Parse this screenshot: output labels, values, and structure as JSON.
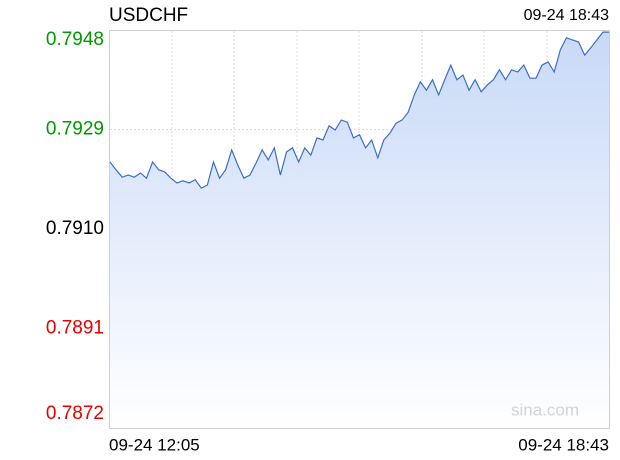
{
  "chart_data": {
    "type": "area-line",
    "title": "USDCHF",
    "timestamp": "09-24 18:43",
    "watermark": "sina.com",
    "categories": [
      "09-24 12:05",
      null,
      null,
      null,
      null,
      null,
      null,
      null,
      null,
      null,
      null,
      null,
      null,
      null,
      null,
      null,
      null,
      null,
      null,
      null,
      null,
      null,
      null,
      null,
      null,
      null,
      null,
      null,
      null,
      null,
      null,
      null,
      null,
      null,
      null,
      null,
      null,
      null,
      null,
      null,
      null,
      null,
      null,
      null,
      null,
      null,
      null,
      null,
      null,
      null,
      null,
      null,
      null,
      null,
      null,
      null,
      null,
      null,
      null,
      null,
      null,
      null,
      null,
      null,
      null,
      null,
      null,
      null,
      null,
      null,
      null,
      null,
      null,
      null,
      null,
      null,
      null,
      null,
      null,
      null,
      null,
      null,
      "09-24 18:43"
    ],
    "values": [
      0.79228,
      0.79213,
      0.79199,
      0.79203,
      0.79199,
      0.79207,
      0.79197,
      0.79228,
      0.79213,
      0.79209,
      0.79197,
      0.79188,
      0.79192,
      0.79188,
      0.79194,
      0.79178,
      0.79184,
      0.79228,
      0.79197,
      0.79213,
      0.79251,
      0.79222,
      0.79197,
      0.79203,
      0.79226,
      0.79251,
      0.79232,
      0.79255,
      0.79203,
      0.79247,
      0.79255,
      0.79228,
      0.79255,
      0.79241,
      0.79274,
      0.7927,
      0.79297,
      0.79289,
      0.79308,
      0.79304,
      0.79274,
      0.7928,
      0.79255,
      0.7927,
      0.79236,
      0.7927,
      0.79283,
      0.79302,
      0.79308,
      0.79323,
      0.79356,
      0.79381,
      0.79365,
      0.79385,
      0.79356,
      0.79385,
      0.79413,
      0.79385,
      0.79394,
      0.79365,
      0.79385,
      0.79362,
      0.79375,
      0.79385,
      0.79404,
      0.79385,
      0.79404,
      0.794,
      0.79413,
      0.79388,
      0.79388,
      0.79413,
      0.79419,
      0.794,
      0.79442,
      0.79465,
      0.79461,
      0.79457,
      0.79432,
      0.79446,
      0.79461,
      0.79476,
      0.79476
    ],
    "color": "#3d6fc4",
    "fill_color": "#c8d9f7",
    "ylim": [
      0.7872,
      0.7948
    ],
    "yticks": [
      0.7872,
      0.7891,
      {
        "value": 0.791,
        "label": "0.7910"
      },
      0.7929,
      0.7948
    ],
    "ytick_colors": [
      "#e60000",
      "#e60000",
      "#000000",
      "#009900",
      "#009900"
    ],
    "grid": true
  }
}
